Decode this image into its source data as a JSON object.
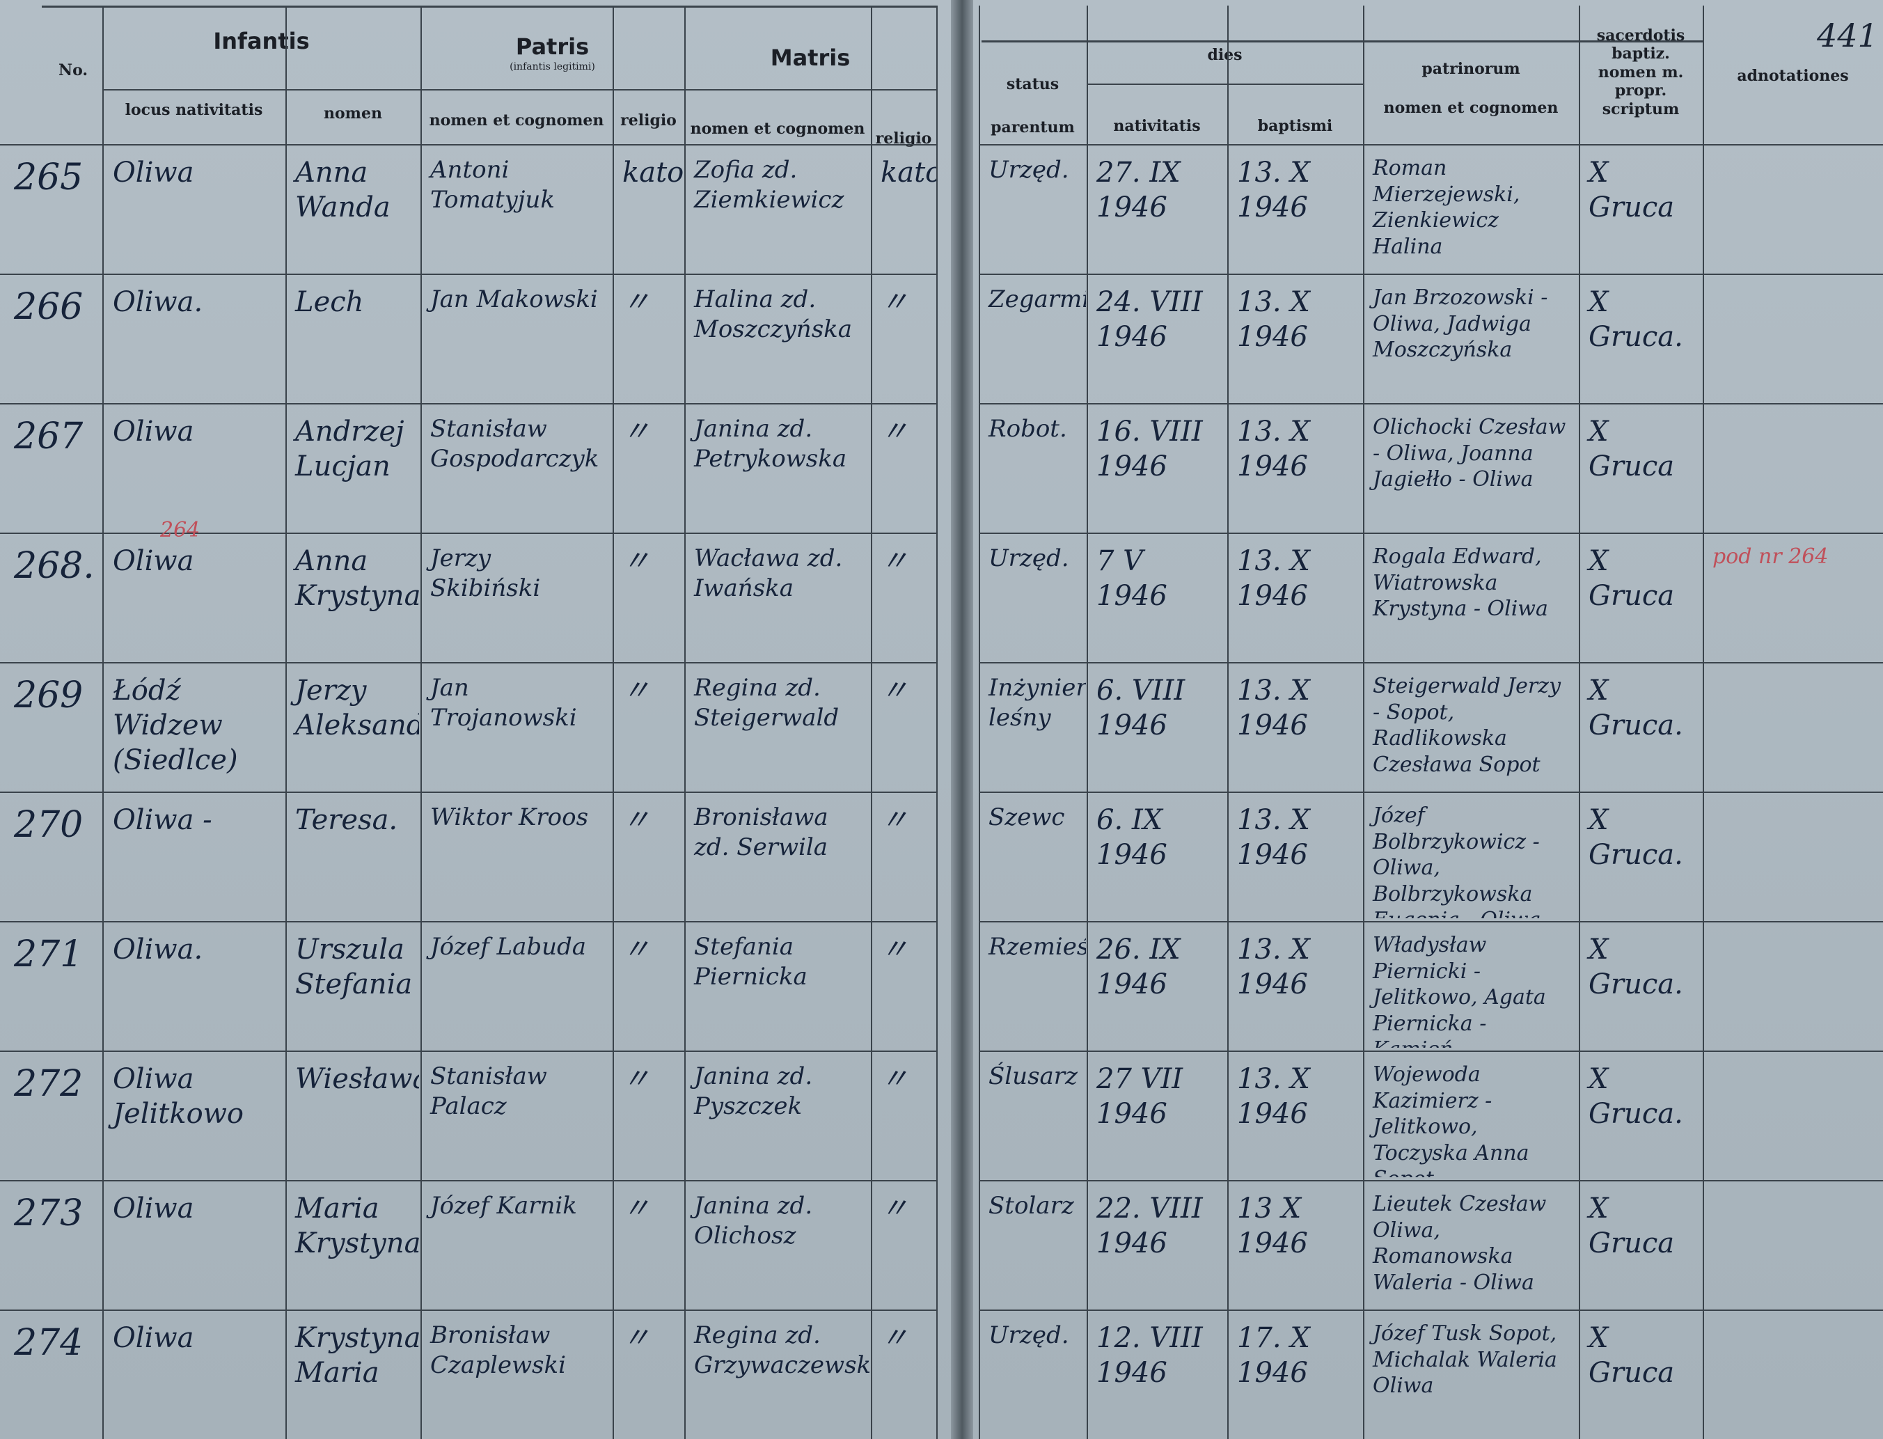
{
  "page_number": "441",
  "header": {
    "no": "No.",
    "infantis": "Infantis",
    "locus_nativitatis": "locus nativitatis",
    "infantis_nomen": "nomen",
    "patris": "Patris",
    "infantis_legitimi": "(infantis legitimi)",
    "patris_nomen": "nomen et cognomen",
    "patris_religio": "religio",
    "matris": "Matris",
    "matris_nomen": "nomen et cognomen",
    "matris_religio": "religio",
    "status": "status",
    "parentum": "parentum",
    "dies": "dies",
    "nativitatis": "nativitatis",
    "baptismi": "baptismi",
    "patrinorum": "patrinorum",
    "patrinorum_nomen": "nomen et cognomen",
    "sacerdotis": "sacerdotis baptiz. nomen m. propr. scriptum",
    "adnotationes": "adnotationes"
  },
  "rows": [
    {
      "no": "265",
      "locus": "Oliwa",
      "nomen": "Anna Wanda",
      "pater": "Antoni Tomatyjuk",
      "pater_religio": "katol.",
      "mater": "Zofia zd. Ziemkiewicz",
      "mater_religio": "katol.",
      "status": "Urzęd.",
      "nativitatis": "27. IX 1946",
      "baptismi": "13. X 1946",
      "patrini": "Roman Mierzejewski, Zienkiewicz Halina",
      "sacerdos": "X Gruca"
    },
    {
      "no": "266",
      "locus": "Oliwa.",
      "nomen": "Lech",
      "pater": "Jan Makowski",
      "pater_religio": "〃",
      "mater": "Halina zd. Moszczyńska",
      "mater_religio": "〃",
      "status": "Zegarmistrz",
      "nativitatis": "24. VIII 1946",
      "baptismi": "13. X 1946",
      "patrini": "Jan Brzozowski - Oliwa, Jadwiga Moszczyńska",
      "sacerdos": "X Gruca."
    },
    {
      "no": "267",
      "locus": "Oliwa",
      "nomen": "Andrzej Lucjan",
      "pater": "Stanisław Gospodarczyk",
      "pater_religio": "〃",
      "mater": "Janina zd. Petrykowska",
      "mater_religio": "〃",
      "status": "Robot.",
      "nativitatis": "16. VIII 1946",
      "baptismi": "13. X 1946",
      "patrini": "Olichocki Czesław - Oliwa, Joanna Jagiełło - Oliwa",
      "sacerdos": "X Gruca"
    },
    {
      "no": "268.",
      "margin": "264",
      "locus": "Oliwa",
      "nomen": "Anna Krystyna",
      "pater": "Jerzy Skibiński",
      "pater_religio": "〃",
      "mater": "Wacława zd. Iwańska",
      "mater_religio": "〃",
      "status": "Urzęd.",
      "nativitatis": "7 V 1946",
      "baptismi": "13. X 1946",
      "patrini": "Rogala Edward, Wiatrowska Krystyna - Oliwa",
      "sacerdos": "X Gruca",
      "adnotationes": "pod nr 264"
    },
    {
      "no": "269",
      "locus": "Łódź Widzew (Siedlce)",
      "nomen": "Jerzy Aleksander",
      "pater": "Jan Trojanowski",
      "pater_religio": "〃",
      "mater": "Regina zd. Steigerwald",
      "mater_religio": "〃",
      "status": "Inżynier leśny",
      "nativitatis": "6. VIII 1946",
      "baptismi": "13. X 1946",
      "patrini": "Steigerwald Jerzy - Sopot, Radlikowska Czesława Sopot",
      "sacerdos": "X Gruca."
    },
    {
      "no": "270",
      "locus": "Oliwa -",
      "nomen": "Teresa.",
      "pater": "Wiktor Kroos",
      "pater_religio": "〃",
      "mater": "Bronisława zd. Serwila",
      "mater_religio": "〃",
      "status": "Szewc",
      "nativitatis": "6. IX 1946",
      "baptismi": "13. X 1946",
      "patrini": "Józef Bolbrzykowicz - Oliwa, Bolbrzykowska Eugenia - Oliwa",
      "sacerdos": "X Gruca."
    },
    {
      "no": "271",
      "locus": "Oliwa.",
      "nomen": "Urszula Stefania",
      "pater": "Józef Labuda",
      "pater_religio": "〃",
      "mater": "Stefania Piernicka",
      "mater_religio": "〃",
      "status": "Rzemieśl.",
      "nativitatis": "26. IX 1946",
      "baptismi": "13. X 1946",
      "patrini": "Władysław Piernicki - Jelitkowo, Agata Piernicka - Kamień",
      "sacerdos": "X Gruca."
    },
    {
      "no": "272",
      "locus": "Oliwa Jelitkowo",
      "nomen": "Wiesława",
      "pater": "Stanisław Palacz",
      "pater_religio": "〃",
      "mater": "Janina zd. Pyszczek",
      "mater_religio": "〃",
      "status": "Ślusarz",
      "nativitatis": "27 VII 1946",
      "baptismi": "13. X 1946",
      "patrini": "Wojewoda Kazimierz - Jelitkowo, Toczyska Anna Sopot",
      "sacerdos": "X Gruca."
    },
    {
      "no": "273",
      "locus": "Oliwa",
      "nomen": "Maria Krystyna",
      "pater": "Józef Karnik",
      "pater_religio": "〃",
      "mater": "Janina zd. Olichosz",
      "mater_religio": "〃",
      "status": "Stolarz",
      "nativitatis": "22. VIII 1946",
      "baptismi": "13 X 1946",
      "patrini": "Lieutek Czesław Oliwa, Romanowska Waleria - Oliwa",
      "sacerdos": "X Gruca"
    },
    {
      "no": "274",
      "locus": "Oliwa",
      "nomen": "Krystyna Maria",
      "pater": "Bronisław Czaplewski",
      "pater_religio": "〃",
      "mater": "Regina zd. Grzywaczewska",
      "mater_religio": "〃",
      "status": "Urzęd.",
      "nativitatis": "12. VIII 1946",
      "baptismi": "17. X 1946",
      "patrini": "Józef Tusk Sopot, Michalak Waleria Oliwa",
      "sacerdos": "X Gruca"
    }
  ]
}
